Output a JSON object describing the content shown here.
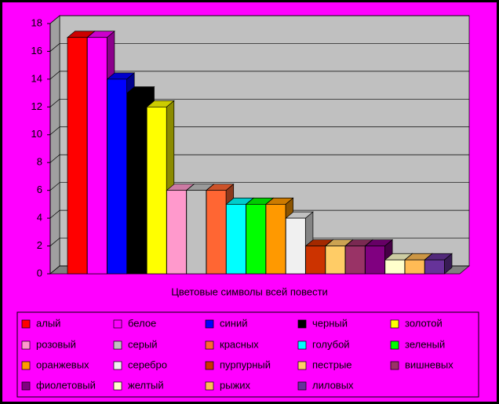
{
  "chart_data": {
    "type": "bar",
    "x_axis_label": "Цветовые символы всей повести",
    "categories": [
      "алый",
      "белое",
      "синий",
      "черный",
      "золотой",
      "розовый",
      "серый",
      "красных",
      "голубой",
      "зеленый",
      "оранжевых",
      "серебро",
      "пурпурный",
      "пестрые",
      "вишневых",
      "фиолетовый",
      "желтый",
      "рыжих",
      "лиловых"
    ],
    "values": [
      17,
      17,
      14,
      13,
      12,
      6,
      6,
      6,
      5,
      5,
      5,
      4,
      2,
      2,
      2,
      2,
      1,
      1,
      1
    ],
    "colors": [
      "#ff0000",
      "#ff00ff",
      "#0000ff",
      "#000000",
      "#ffff00",
      "#ff99cc",
      "#c0c0c0",
      "#ff6633",
      "#00ffff",
      "#00ff00",
      "#ff9900",
      "#f0f0f0",
      "#cc3300",
      "#ffcc66",
      "#993366",
      "#800080",
      "#ffffcc",
      "#ffbb55",
      "#663399"
    ],
    "ylim": [
      0,
      18
    ],
    "yticks": [
      0,
      2,
      4,
      6,
      8,
      10,
      12,
      14,
      16,
      18
    ],
    "grid": true
  }
}
